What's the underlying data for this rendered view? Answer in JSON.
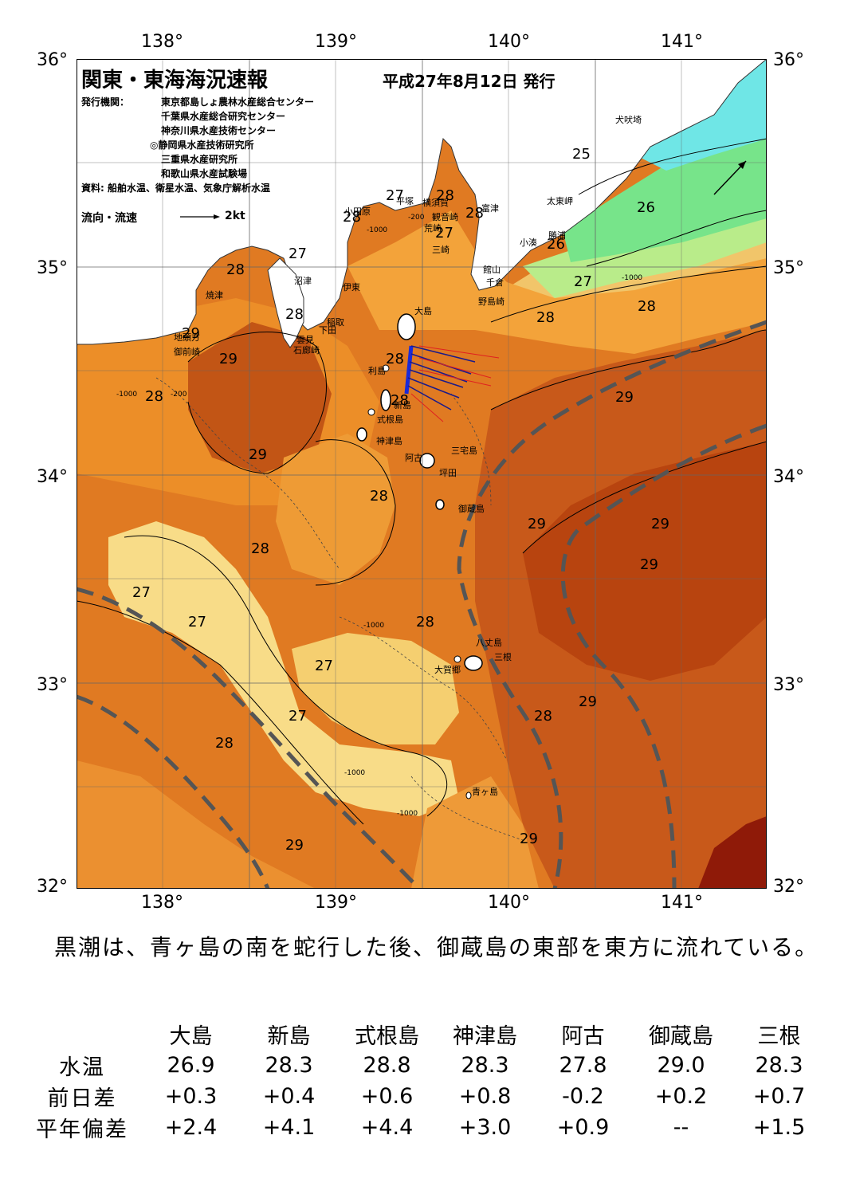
{
  "map": {
    "title": "関東・東海海況速報",
    "issue_date": "平成27年8月12日 発行",
    "issuers_label": "発行機関：",
    "issuers": [
      "東京都島しょ農林水産総合センター",
      "千葉県水産総合研究センター",
      "神奈川県水産技術センター",
      "◎静岡県水産技術研究所",
      "三重県水産研究所",
      "和歌山県水産試験場"
    ],
    "source": "資料: 船舶水温、衛星水温、気象庁解析水温",
    "current_legend_label": "流向・流速",
    "current_legend_value": "2kt",
    "lon_ticks": [
      "138°",
      "139°",
      "140°",
      "141°"
    ],
    "lat_ticks": [
      "36°",
      "35°",
      "34°",
      "33°",
      "32°"
    ],
    "place_names": [
      "犬吠埼",
      "太東岬",
      "勝浦",
      "小湊",
      "富津",
      "館山",
      "千倉",
      "野島崎",
      "横須賀",
      "観音崎",
      "平塚",
      "小田原",
      "荒崎",
      "三崎",
      "沼津",
      "伊東",
      "大島",
      "稲取",
      "下田",
      "雲見",
      "石廊崎",
      "焼津",
      "地頭方",
      "御前崎",
      "利島",
      "新島",
      "式根島",
      "神津島",
      "三宅島",
      "阿古",
      "坪田",
      "御蔵島",
      "八丈島",
      "三根",
      "大賀郷",
      "青ヶ島"
    ],
    "isotherm_labels": [
      {
        "text": "25"
      },
      {
        "text": "26"
      },
      {
        "text": "26"
      },
      {
        "text": "27"
      },
      {
        "text": "27"
      },
      {
        "text": "27"
      },
      {
        "text": "27"
      },
      {
        "text": "27"
      },
      {
        "text": "27"
      },
      {
        "text": "27"
      },
      {
        "text": "27"
      },
      {
        "text": "28"
      },
      {
        "text": "28"
      },
      {
        "text": "28"
      },
      {
        "text": "28"
      },
      {
        "text": "28"
      },
      {
        "text": "28"
      },
      {
        "text": "28"
      },
      {
        "text": "28"
      },
      {
        "text": "28"
      },
      {
        "text": "28"
      },
      {
        "text": "28"
      },
      {
        "text": "28"
      },
      {
        "text": "28"
      },
      {
        "text": "28"
      },
      {
        "text": "28"
      },
      {
        "text": "29"
      },
      {
        "text": "29"
      },
      {
        "text": "29"
      },
      {
        "text": "29"
      },
      {
        "text": "29"
      },
      {
        "text": "29"
      },
      {
        "text": "29"
      },
      {
        "text": "29"
      },
      {
        "text": "29"
      }
    ],
    "depth_labels": [
      "-200",
      "-1000"
    ],
    "colors": {
      "land": "#ffffff",
      "coastal_cold": "#6fe6e6",
      "green": "#77e48a",
      "light_green": "#b9ec8a",
      "pale_yellow": "#f8e08a",
      "light_orange": "#f4b648",
      "orange": "#ee9428",
      "orange2": "#e47c1e",
      "dark_orange": "#d4611a",
      "brown": "#bf4c12",
      "dark_red": "#8f1a08",
      "kuroshio_axis": "#555555"
    }
  },
  "summary_text": "黒潮は、青ヶ島の南を蛇行した後、御蔵島の東部を東方に流れている。",
  "table": {
    "stations": [
      "大島",
      "新島",
      "式根島",
      "神津島",
      "阿古",
      "御蔵島",
      "三根"
    ],
    "rows": [
      {
        "label": "水温",
        "values": [
          "26.9",
          "28.3",
          "28.8",
          "28.3",
          "27.8",
          "29.0",
          "28.3"
        ]
      },
      {
        "label": "前日差",
        "values": [
          "+0.3",
          "+0.4",
          "+0.6",
          "+0.8",
          "-0.2",
          "+0.2",
          "+0.7"
        ]
      },
      {
        "label": "平年偏差",
        "values": [
          "+2.4",
          "+4.1",
          "+4.4",
          "+3.0",
          "+0.9",
          "--",
          "+1.5"
        ]
      }
    ]
  }
}
